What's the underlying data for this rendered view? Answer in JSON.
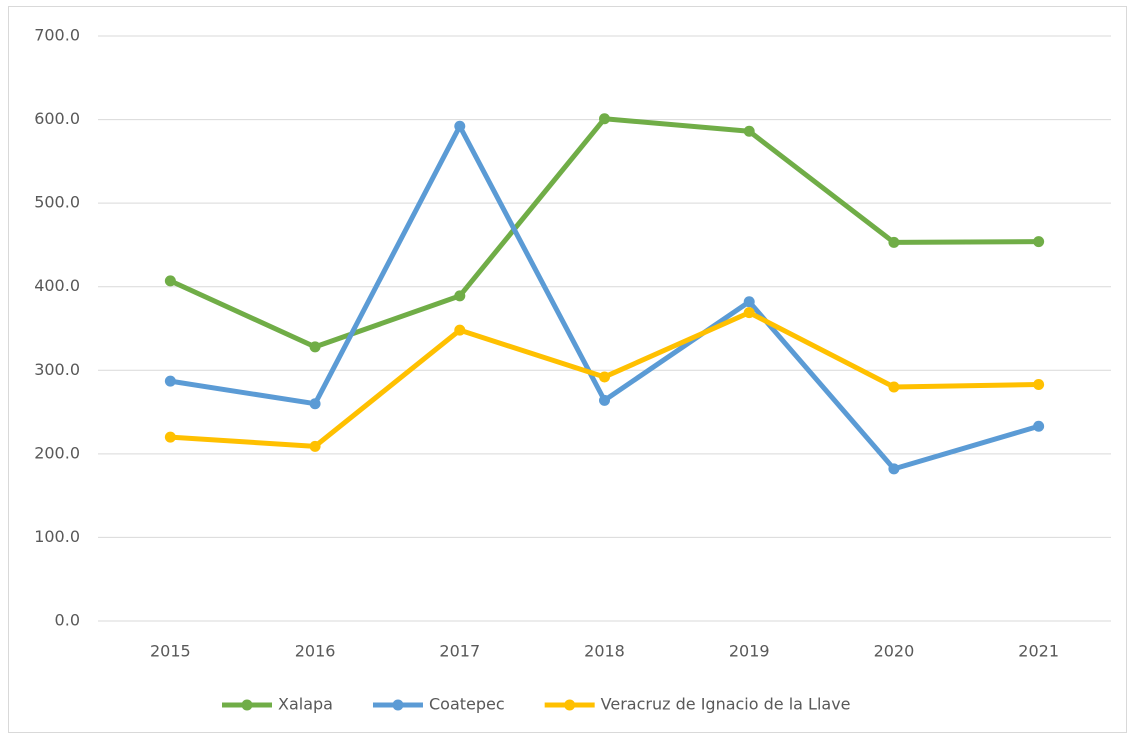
{
  "chart_data": {
    "type": "line",
    "categories": [
      "2015",
      "2016",
      "2017",
      "2018",
      "2019",
      "2020",
      "2021"
    ],
    "series": [
      {
        "name": "Xalapa",
        "color": "#70ad47",
        "values": [
          407,
          328,
          389,
          601,
          586,
          453,
          454
        ]
      },
      {
        "name": "Coatepec",
        "color": "#5b9bd5",
        "values": [
          287,
          260,
          592,
          264,
          382,
          182,
          233
        ]
      },
      {
        "name": "Veracruz de Ignacio de la Llave",
        "color": "#ffc000",
        "values": [
          220,
          209,
          348,
          292,
          369,
          280,
          283
        ]
      }
    ],
    "ylim": [
      0,
      700
    ],
    "yticks": [
      {
        "value": 0,
        "label": "0.0"
      },
      {
        "value": 100,
        "label": "100.0"
      },
      {
        "value": 200,
        "label": "200.0"
      },
      {
        "value": 300,
        "label": "300.0"
      },
      {
        "value": 400,
        "label": "400.0"
      },
      {
        "value": 500,
        "label": "500.0"
      },
      {
        "value": 600,
        "label": "600.0"
      },
      {
        "value": 700,
        "label": "700.0"
      }
    ],
    "grid": true,
    "legend": "bottom"
  }
}
